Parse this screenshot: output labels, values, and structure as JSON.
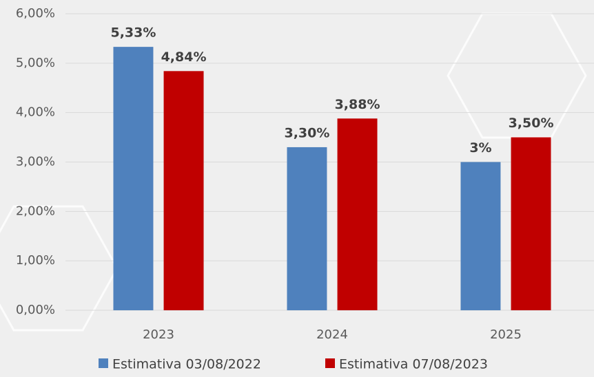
{
  "chart_data": {
    "type": "bar",
    "categories": [
      "2023",
      "2024",
      "2025"
    ],
    "series": [
      {
        "name": "Estimativa 03/08/2022",
        "color": "#4f81bd",
        "values": [
          5.33,
          3.3,
          3
        ],
        "value_labels": [
          "5,33%",
          "3,30%",
          "3%"
        ]
      },
      {
        "name": "Estimativa 07/08/2023",
        "color": "#c00000",
        "values": [
          4.84,
          3.88,
          3.5
        ],
        "value_labels": [
          "4,84%",
          "3,88%",
          "3,50%"
        ]
      }
    ],
    "ylim": [
      0,
      6
    ],
    "yticks": [
      {
        "value": 0,
        "label": "0,00%"
      },
      {
        "value": 1,
        "label": "1,00%"
      },
      {
        "value": 2,
        "label": "2,00%"
      },
      {
        "value": 3,
        "label": "3,00%"
      },
      {
        "value": 4,
        "label": "4,00%"
      },
      {
        "value": 5,
        "label": "5,00%"
      },
      {
        "value": 6,
        "label": "6,00%"
      }
    ],
    "grid": true,
    "legend": "bottom"
  }
}
